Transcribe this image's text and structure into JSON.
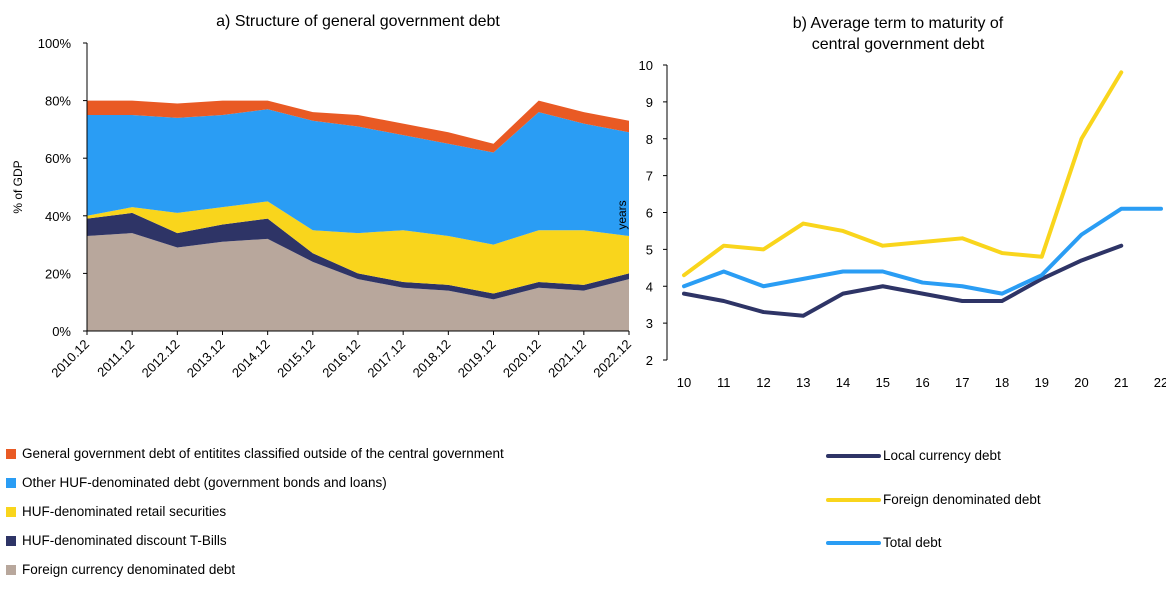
{
  "chart_data": [
    {
      "type": "area",
      "title": "a) Structure of general government debt",
      "ylabel": "% of GDP",
      "ylim": [
        0,
        100
      ],
      "yticks": [
        "0%",
        "20%",
        "40%",
        "60%",
        "80%",
        "100%"
      ],
      "categories": [
        "2010.12",
        "2011.12",
        "2012.12",
        "2013.12",
        "2014.12",
        "2015.12",
        "2016.12",
        "2017.12",
        "2018.12",
        "2019.12",
        "2020.12",
        "2021.12",
        "2022.12"
      ],
      "stacked": true,
      "grid": false,
      "legend_position": "bottom",
      "series": [
        {
          "name": "Foreign currency denominated debt",
          "color": "#b8a79c",
          "values": [
            33,
            34,
            29,
            31,
            32,
            24,
            18,
            15,
            14,
            11,
            15,
            14,
            18
          ]
        },
        {
          "name": "HUF-denominated discount T-Bills",
          "color": "#2e3466",
          "values": [
            6,
            7,
            5,
            6,
            7,
            3,
            2,
            2,
            2,
            2,
            2,
            2,
            2
          ]
        },
        {
          "name": "HUF-denominated retail securities",
          "color": "#f9d51c",
          "values": [
            1,
            2,
            7,
            6,
            6,
            8,
            14,
            18,
            17,
            17,
            18,
            19,
            13
          ]
        },
        {
          "name": "Other HUF-denominated debt (government bonds and loans)",
          "color": "#2a9df4",
          "values": [
            35,
            32,
            33,
            32,
            32,
            38,
            37,
            33,
            32,
            32,
            41,
            37,
            36
          ]
        },
        {
          "name": "General government debt of entitites classified outside of the central government",
          "color": "#e95a24",
          "values": [
            5,
            5,
            5,
            5,
            3,
            3,
            4,
            4,
            4,
            3,
            4,
            4,
            4
          ]
        }
      ]
    },
    {
      "type": "line",
      "title": "b) Average term to maturity of central government debt",
      "title_lines": [
        "b) Average term to maturity of",
        "central government debt"
      ],
      "ylabel": "years",
      "ylim": [
        2,
        10
      ],
      "yticks": [
        "2",
        "3",
        "4",
        "5",
        "6",
        "7",
        "8",
        "9",
        "10"
      ],
      "categories": [
        "10",
        "11",
        "12",
        "13",
        "14",
        "15",
        "16",
        "17",
        "18",
        "19",
        "20",
        "21",
        "22"
      ],
      "grid": false,
      "legend_position": "bottom",
      "series": [
        {
          "name": "Local currency debt",
          "color": "#2e3466",
          "values": [
            3.8,
            3.6,
            3.3,
            3.2,
            3.8,
            4.0,
            3.8,
            3.6,
            3.6,
            4.2,
            4.7,
            5.1,
            null
          ]
        },
        {
          "name": "Foreign denominated debt",
          "color": "#f9d51c",
          "values": [
            4.3,
            5.1,
            5.0,
            5.7,
            5.5,
            5.1,
            5.2,
            5.3,
            4.9,
            4.8,
            8.0,
            9.8,
            null
          ]
        },
        {
          "name": "Total debt",
          "color": "#2a9df4",
          "values": [
            4.0,
            4.4,
            4.0,
            4.2,
            4.4,
            4.4,
            4.1,
            4.0,
            3.8,
            4.3,
            5.4,
            6.1,
            6.1
          ]
        }
      ]
    }
  ]
}
